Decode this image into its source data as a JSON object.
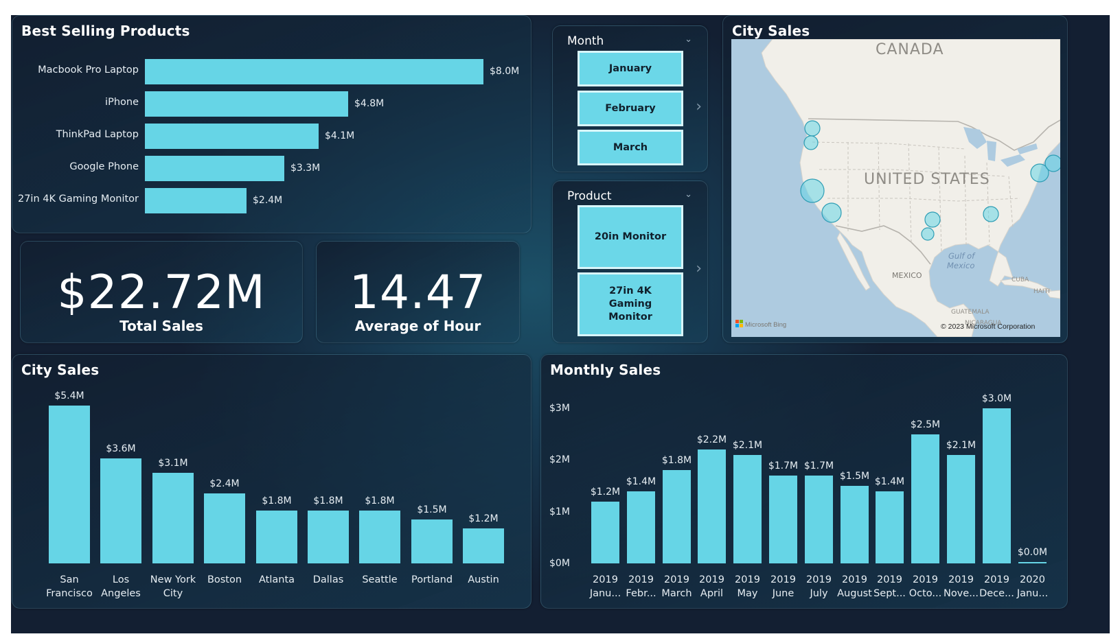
{
  "best_selling": {
    "title": "Best Selling Products",
    "items": [
      {
        "label": "Macbook Pro Laptop",
        "value": 8.0,
        "value_label": "$8.0M"
      },
      {
        "label": "iPhone",
        "value": 4.8,
        "value_label": "$4.8M"
      },
      {
        "label": "ThinkPad Laptop",
        "value": 4.1,
        "value_label": "$4.1M"
      },
      {
        "label": "Google Phone",
        "value": 3.3,
        "value_label": "$3.3M"
      },
      {
        "label": "27in 4K Gaming Monitor",
        "value": 2.4,
        "value_label": "$2.4M"
      }
    ]
  },
  "kpi_total": {
    "value": "$22.72M",
    "label": "Total Sales"
  },
  "kpi_hour": {
    "value": "14.47",
    "label": "Average of Hour"
  },
  "month_slicer": {
    "title": "Month",
    "options": [
      "January",
      "February",
      "March"
    ]
  },
  "product_slicer": {
    "title": "Product",
    "options": [
      "20in Monitor",
      "27in 4K Gaming Monitor"
    ]
  },
  "city_map": {
    "title": "City Sales",
    "labels": {
      "canada": "CANADA",
      "united_states": "UNITED STATES",
      "gulf": "Gulf of Mexico",
      "mexico": "MEXICO",
      "cuba": "CUBA",
      "haiti": "HAITI",
      "guatemala": "GUATEMALA",
      "nicaragua": "NICARAGUA",
      "bing": "Microsoft Bing",
      "copyright": "© 2023 Microsoft Corporation"
    }
  },
  "city_sales": {
    "title": "City Sales",
    "chart_data": {
      "type": "bar",
      "categories": [
        "San Francisco",
        "Los Angeles",
        "New York City",
        "Boston",
        "Atlanta",
        "Dallas",
        "Seattle",
        "Portland",
        "Austin"
      ],
      "values": [
        5.4,
        3.6,
        3.1,
        2.4,
        1.8,
        1.8,
        1.8,
        1.5,
        1.2
      ],
      "value_labels": [
        "$5.4M",
        "$3.6M",
        "$3.1M",
        "$2.4M",
        "$1.8M",
        "$1.8M",
        "$1.8M",
        "$1.5M",
        "$1.2M"
      ],
      "category_lines": [
        [
          "San",
          "Francisco"
        ],
        [
          "Los",
          "Angeles"
        ],
        [
          "New York",
          "City"
        ],
        [
          "Boston"
        ],
        [
          "Atlanta"
        ],
        [
          "Dallas"
        ],
        [
          "Seattle"
        ],
        [
          "Portland"
        ],
        [
          "Austin"
        ]
      ]
    }
  },
  "monthly_sales": {
    "title": "Monthly Sales",
    "chart_data": {
      "type": "bar",
      "categories": [
        "2019 Janu...",
        "2019 Febr...",
        "2019 March",
        "2019 April",
        "2019 May",
        "2019 June",
        "2019 July",
        "2019 August",
        "2019 Sept...",
        "2019 Octo...",
        "2019 Nove...",
        "2019 Dece...",
        "2020 Janu..."
      ],
      "category_lines": [
        [
          "2019",
          "Janu..."
        ],
        [
          "2019",
          "Febr..."
        ],
        [
          "2019",
          "March"
        ],
        [
          "2019",
          "April"
        ],
        [
          "2019",
          "May"
        ],
        [
          "2019",
          "June"
        ],
        [
          "2019",
          "July"
        ],
        [
          "2019",
          "August"
        ],
        [
          "2019",
          "Sept..."
        ],
        [
          "2019",
          "Octo..."
        ],
        [
          "2019",
          "Nove..."
        ],
        [
          "2019",
          "Dece..."
        ],
        [
          "2020",
          "Janu..."
        ]
      ],
      "values": [
        1.2,
        1.4,
        1.8,
        2.2,
        2.1,
        1.7,
        1.7,
        1.5,
        1.4,
        2.5,
        2.1,
        3.0,
        0.0
      ],
      "value_labels": [
        "$1.2M",
        "$1.4M",
        "$1.8M",
        "$2.2M",
        "$2.1M",
        "$1.7M",
        "$1.7M",
        "$1.5M",
        "$1.4M",
        "$2.5M",
        "$2.1M",
        "$3.0M",
        "$0.0M"
      ],
      "y_ticks": [
        "$0M",
        "$1M",
        "$2M",
        "$3M"
      ],
      "ylim": [
        0,
        3
      ]
    }
  },
  "colors": {
    "bar": "#66d5e6",
    "slicer_fill": "#6bd7e8",
    "background_dark": "#131f32",
    "text": "#ffffff"
  }
}
